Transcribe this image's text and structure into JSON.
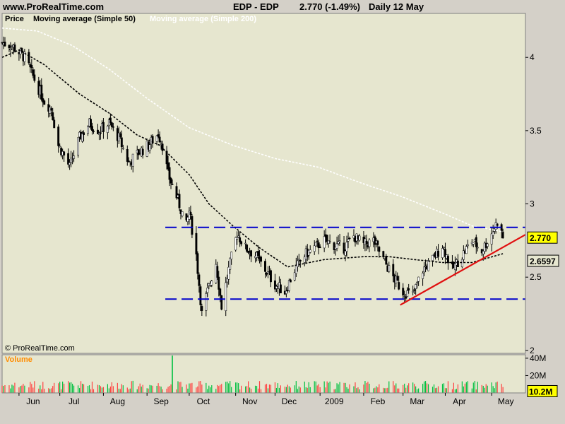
{
  "header": {
    "site": "www.ProRealTime.com",
    "instrument": "EDP - EDP",
    "price": "2.770 (-1.49%)",
    "period": "Daily  12 May"
  },
  "copyright": "© ProRealTime.com",
  "colors": {
    "panel_bg": "#e6e6cf",
    "frame_bg": "#d4d0c8",
    "up_candle": "#ffffff",
    "down_candle": "#000000",
    "ma50": "#000000",
    "ma200": "#ffffff",
    "support_resistance": "#0000cc",
    "trendline": "#e01010",
    "volume_up": "#00c040",
    "volume_down": "#ff4040",
    "label_bg": "#ffff00"
  },
  "chart_data": [
    {
      "type": "candlestick",
      "legend": [
        "Price",
        "Moving average (Simple 50)",
        "Moving average (Simple 200)"
      ],
      "x_tick_labels": [
        "Jun",
        "Jul",
        "Aug",
        "Sep",
        "Oct",
        "Nov",
        "Dec",
        "2009",
        "Feb",
        "Mar",
        "Apr",
        "May"
      ],
      "y_tick_labels": [
        "4",
        "3.5",
        "3",
        "2.5",
        "2"
      ],
      "ylim": [
        1.98,
        4.3
      ],
      "y_ticks": [
        4,
        3.5,
        3,
        2.5,
        2
      ],
      "x_ticks": [
        "2008-06-02",
        "2008-07-01",
        "2008-08-01",
        "2008-09-01",
        "2008-10-01",
        "2008-11-03",
        "2008-12-01",
        "2009-01-02",
        "2009-02-02",
        "2009-03-02",
        "2009-04-01",
        "2009-05-04"
      ],
      "x_start": "2008-05-21",
      "x_end": "2009-05-28",
      "last_price_label": "2.770",
      "ma50_label": "2.6597",
      "price_path": [
        [
          "2008-05-21",
          4.1
        ],
        [
          "2008-05-28",
          4.08
        ],
        [
          "2008-06-06",
          4.0
        ],
        [
          "2008-06-13",
          3.85
        ],
        [
          "2008-06-20",
          3.7
        ],
        [
          "2008-06-25",
          3.65
        ],
        [
          "2008-06-30",
          3.4
        ],
        [
          "2008-07-03",
          3.35
        ],
        [
          "2008-07-08",
          3.25
        ],
        [
          "2008-07-15",
          3.45
        ],
        [
          "2008-07-22",
          3.55
        ],
        [
          "2008-07-29",
          3.5
        ],
        [
          "2008-08-05",
          3.55
        ],
        [
          "2008-08-12",
          3.45
        ],
        [
          "2008-08-19",
          3.28
        ],
        [
          "2008-08-26",
          3.35
        ],
        [
          "2008-09-02",
          3.4
        ],
        [
          "2008-09-09",
          3.48
        ],
        [
          "2008-09-12",
          3.4
        ],
        [
          "2008-09-16",
          3.2
        ],
        [
          "2008-09-22",
          3.05
        ],
        [
          "2008-09-29",
          2.85
        ],
        [
          "2008-10-01",
          2.95
        ],
        [
          "2008-10-06",
          2.65
        ],
        [
          "2008-10-10",
          2.25
        ],
        [
          "2008-10-14",
          2.4
        ],
        [
          "2008-10-20",
          2.6
        ],
        [
          "2008-10-24",
          2.3
        ],
        [
          "2008-10-29",
          2.55
        ],
        [
          "2008-11-04",
          2.8
        ],
        [
          "2008-11-10",
          2.7
        ],
        [
          "2008-11-17",
          2.65
        ],
        [
          "2008-11-24",
          2.55
        ],
        [
          "2008-12-01",
          2.45
        ],
        [
          "2008-12-08",
          2.4
        ],
        [
          "2008-12-15",
          2.55
        ],
        [
          "2008-12-22",
          2.65
        ],
        [
          "2008-12-29",
          2.7
        ],
        [
          "2009-01-05",
          2.75
        ],
        [
          "2009-01-12",
          2.72
        ],
        [
          "2009-01-19",
          2.7
        ],
        [
          "2009-01-26",
          2.78
        ],
        [
          "2009-02-02",
          2.72
        ],
        [
          "2009-02-09",
          2.75
        ],
        [
          "2009-02-16",
          2.62
        ],
        [
          "2009-02-23",
          2.5
        ],
        [
          "2009-03-02",
          2.4
        ],
        [
          "2009-03-09",
          2.38
        ],
        [
          "2009-03-16",
          2.55
        ],
        [
          "2009-03-23",
          2.62
        ],
        [
          "2009-03-30",
          2.72
        ],
        [
          "2009-04-06",
          2.55
        ],
        [
          "2009-04-13",
          2.65
        ],
        [
          "2009-04-20",
          2.75
        ],
        [
          "2009-04-27",
          2.68
        ],
        [
          "2009-05-04",
          2.8
        ],
        [
          "2009-05-08",
          2.88
        ],
        [
          "2009-05-12",
          2.77
        ]
      ],
      "ma50": [
        [
          "2008-05-21",
          4.0
        ],
        [
          "2008-06-02",
          4.05
        ],
        [
          "2008-06-20",
          3.95
        ],
        [
          "2008-07-15",
          3.75
        ],
        [
          "2008-08-05",
          3.62
        ],
        [
          "2008-08-25",
          3.47
        ],
        [
          "2008-09-10",
          3.4
        ],
        [
          "2008-10-01",
          3.2
        ],
        [
          "2008-10-15",
          3.0
        ],
        [
          "2008-11-01",
          2.85
        ],
        [
          "2008-11-20",
          2.7
        ],
        [
          "2008-12-10",
          2.57
        ],
        [
          "2009-01-05",
          2.62
        ],
        [
          "2009-02-02",
          2.64
        ],
        [
          "2009-02-20",
          2.64
        ],
        [
          "2009-03-10",
          2.62
        ],
        [
          "2009-03-30",
          2.6
        ],
        [
          "2009-04-20",
          2.6
        ],
        [
          "2009-05-12",
          2.66
        ]
      ],
      "ma200": [
        [
          "2008-05-21",
          4.2
        ],
        [
          "2008-06-15",
          4.18
        ],
        [
          "2008-07-10",
          4.08
        ],
        [
          "2008-08-05",
          3.92
        ],
        [
          "2008-09-01",
          3.72
        ],
        [
          "2008-10-01",
          3.52
        ],
        [
          "2008-11-01",
          3.4
        ],
        [
          "2008-12-01",
          3.31
        ],
        [
          "2009-01-01",
          3.25
        ],
        [
          "2009-02-01",
          3.14
        ],
        [
          "2009-03-01",
          3.05
        ],
        [
          "2009-04-01",
          2.93
        ],
        [
          "2009-04-20",
          2.85
        ],
        [
          "2009-05-12",
          2.81
        ]
      ],
      "resistance": {
        "value": 2.84,
        "from": "2008-09-14",
        "to": "2009-05-28"
      },
      "support": {
        "value": 2.35,
        "from": "2008-09-14",
        "to": "2009-05-28"
      },
      "trendline": {
        "from": [
          "2009-02-28",
          2.31
        ],
        "to": [
          "2009-05-28",
          2.79
        ]
      }
    },
    {
      "type": "bar",
      "legend": [
        "Volume"
      ],
      "y_tick_labels": [
        "40M",
        "20M"
      ],
      "y_ticks": [
        40,
        20
      ],
      "ylim": [
        0,
        44
      ],
      "last_volume_label": "10.2M",
      "spike": {
        "date": "2008-09-19",
        "value": 43
      }
    }
  ]
}
